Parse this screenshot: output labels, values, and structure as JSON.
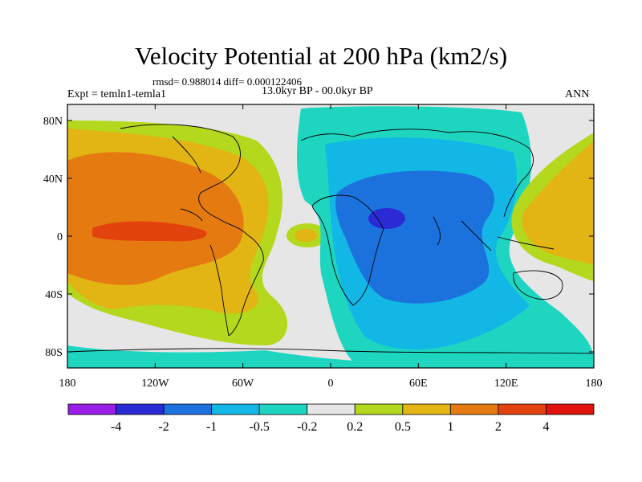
{
  "title": "Velocity Potential at 200 hPa (km2/s)",
  "stats_line": "rmsd= 0.988014  diff= 0.000122406",
  "period_line": "13.0kyr BP - 00.0kyr BP",
  "experiment_label": "Expt = temln1-temla1",
  "season_label": "ANN",
  "lat_ticks": [
    "80N",
    "40N",
    "0",
    "40S",
    "80S"
  ],
  "lon_ticks": [
    "180",
    "120W",
    "60W",
    "0",
    "60E",
    "120E",
    "180"
  ],
  "colorbar": {
    "labels": [
      "-4",
      "-2",
      "-1",
      "-0.5",
      "-0.2",
      "0.2",
      "0.5",
      "1",
      "2",
      "4"
    ],
    "colors": [
      "#9a1fe6",
      "#2b2bd6",
      "#1c72dc",
      "#13b7e6",
      "#1ed6c0",
      "#e6e6e6",
      "#b4d81e",
      "#e2b414",
      "#e57a10",
      "#e2420d",
      "#e0140c"
    ]
  }
}
